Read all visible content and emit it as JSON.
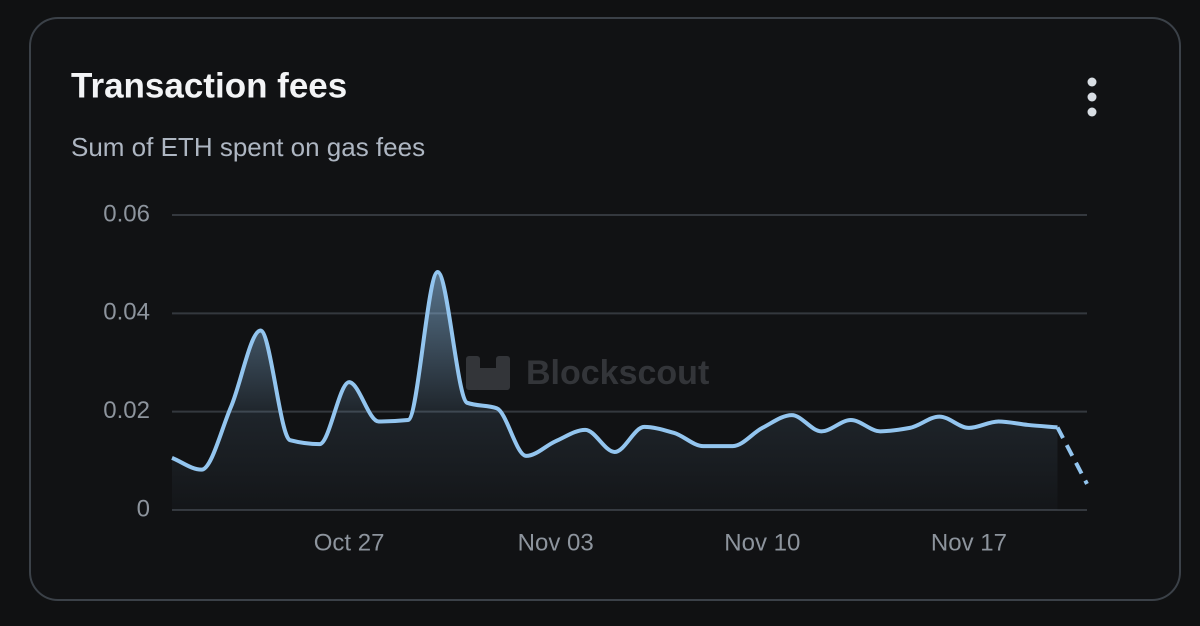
{
  "chart_data": {
    "type": "line",
    "title": "Transaction fees",
    "subtitle": "Sum of ETH spent on gas fees",
    "watermark": "Blockscout",
    "x": [
      "Oct 21",
      "Oct 22",
      "Oct 23",
      "Oct 24",
      "Oct 25",
      "Oct 26",
      "Oct 27",
      "Oct 28",
      "Oct 29",
      "Oct 30",
      "Oct 31",
      "Nov 01",
      "Nov 02",
      "Nov 03",
      "Nov 04",
      "Nov 05",
      "Nov 06",
      "Nov 07",
      "Nov 08",
      "Nov 09",
      "Nov 10",
      "Nov 11",
      "Nov 12",
      "Nov 13",
      "Nov 14",
      "Nov 15",
      "Nov 16",
      "Nov 17",
      "Nov 18",
      "Nov 19",
      "Nov 20",
      "Nov 21"
    ],
    "series": [
      {
        "color": "#93c5ef",
        "values": [
          0.0106,
          0.0082,
          0.021,
          0.0365,
          0.0142,
          0.0134,
          0.026,
          0.018,
          0.0183,
          0.0484,
          0.0218,
          0.0207,
          0.011,
          0.014,
          0.0163,
          0.0118,
          0.0169,
          0.0157,
          0.013,
          0.013,
          0.0167,
          0.0193,
          0.016,
          0.0183,
          0.016,
          0.0167,
          0.019,
          0.0167,
          0.018,
          0.0173,
          0.0168,
          0.0053
        ]
      }
    ],
    "dashed_last_segment": true,
    "ylim": [
      0,
      0.06
    ],
    "yticks": [
      0,
      0.02,
      0.04,
      0.06
    ],
    "xticks": [
      "Oct 27",
      "Nov 03",
      "Nov 10",
      "Nov 17"
    ],
    "grid": true
  }
}
